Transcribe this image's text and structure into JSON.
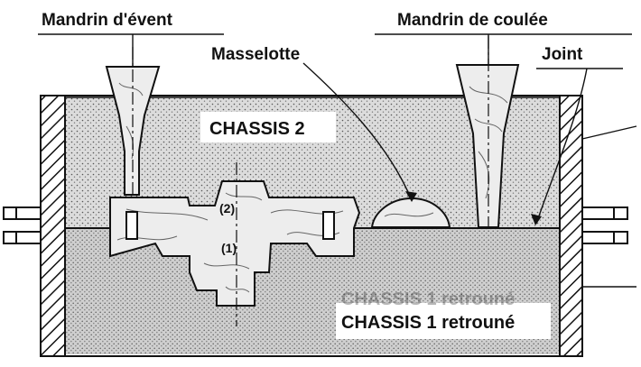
{
  "labels": {
    "mandrin_event": "Mandrin d'évent",
    "mandrin_coulee": "Mandrin de coulée",
    "masselotte": "Masselotte",
    "joint": "Joint",
    "chassis_2": "CHASSIS 2",
    "chassis_1": "CHASSIS 1 retrouné",
    "chassis_1_ghost": "CHASSIS 1 retrouné",
    "part_upper": "(2)",
    "part_lower": "(1)"
  },
  "colors": {
    "ink": "#111111",
    "sand_upper": "#d6d6d6",
    "sand_lower": "#c9c9c9",
    "wood": "#ededed",
    "paper": "#ffffff"
  }
}
